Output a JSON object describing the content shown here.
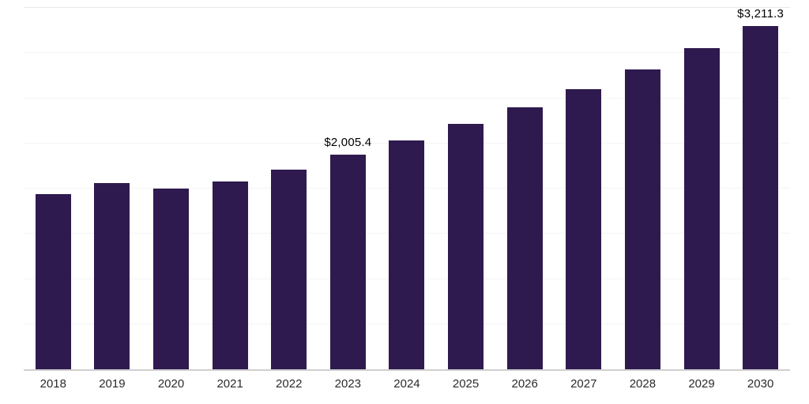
{
  "page": {
    "background": "#ffffff"
  },
  "chart_data": {
    "type": "bar",
    "title": "",
    "xlabel": "",
    "ylabel": "",
    "legend": "none",
    "grid": "horizontal",
    "gridlines": 8,
    "ylim": [
      0,
      3400
    ],
    "bar_color": "#2e1a4e",
    "value_label_color": "#000000",
    "axis_label_color": "#2b2b2b",
    "categories": [
      "2018",
      "2019",
      "2020",
      "2021",
      "2022",
      "2023",
      "2024",
      "2025",
      "2026",
      "2027",
      "2028",
      "2029",
      "2030"
    ],
    "values": [
      1640,
      1740,
      1690,
      1755,
      1865,
      2005.4,
      2140,
      2295,
      2450,
      2620,
      2800,
      3005,
      3211.3
    ],
    "data_labels": [
      "",
      "",
      "",
      "",
      "",
      "$2,005.4",
      "",
      "",
      "",
      "",
      "",
      "",
      "$3,211.3"
    ]
  }
}
